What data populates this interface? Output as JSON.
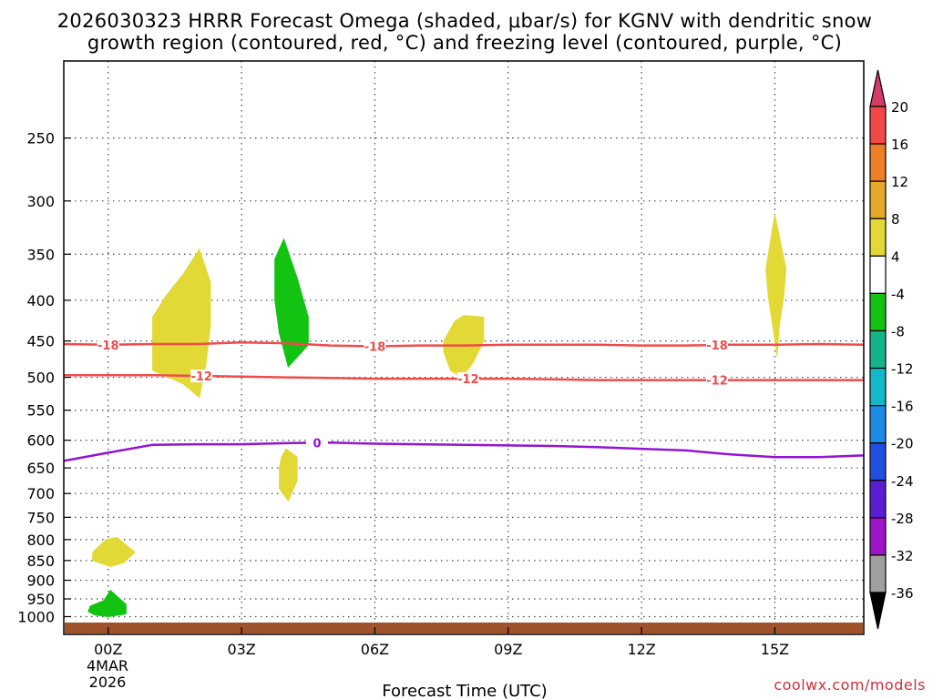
{
  "chart_data": {
    "type": "time-height cross section",
    "title_line1": "2026030323 HRRR Forecast Omega (shaded, μbar/s) for KGNV with dendritic snow",
    "title_line2": "growth region (contoured, red, °C) and freezing level (contoured, purple, °C)",
    "xlabel": "Forecast Time (UTC)",
    "x_ticks": [
      {
        "hour": 0,
        "label": "00Z"
      },
      {
        "hour": 3,
        "label": "03Z"
      },
      {
        "hour": 6,
        "label": "06Z"
      },
      {
        "hour": 9,
        "label": "09Z"
      },
      {
        "hour": 12,
        "label": "12Z"
      },
      {
        "hour": 15,
        "label": "15Z"
      }
    ],
    "x_date_label": [
      "4MAR",
      "2026"
    ],
    "xlim": [
      -1,
      17
    ],
    "y_scale": "pressure (log, inverted)",
    "ylim": [
      200,
      1020
    ],
    "y_ticks": [
      250,
      300,
      350,
      400,
      450,
      500,
      550,
      600,
      650,
      700,
      750,
      800,
      850,
      900,
      950,
      1000
    ],
    "grid": true,
    "colorbar": {
      "units": "μbar/s",
      "labels": [
        "20",
        "16",
        "12",
        "8",
        "4",
        "-4",
        "-8",
        "-12",
        "-16",
        "-20",
        "-24",
        "-28",
        "-32",
        "-36"
      ],
      "colors": [
        "#d43c68",
        "#f24848",
        "#ee7f26",
        "#e6a828",
        "#e3d936",
        "#ffffff",
        "#12c312",
        "#14b48a",
        "#14b9c8",
        "#1e8ce6",
        "#2050e0",
        "#5a1ed2",
        "#9e14c8",
        "#a0a0a0",
        "#000000"
      ]
    },
    "contours": [
      {
        "kind": "dendritic",
        "level": "-18",
        "color": "#f04b4b",
        "points": [
          [
            -1,
            454
          ],
          [
            0,
            455
          ],
          [
            1,
            454
          ],
          [
            2,
            454
          ],
          [
            3,
            452
          ],
          [
            4,
            453
          ],
          [
            5,
            456
          ],
          [
            6,
            457
          ],
          [
            7,
            456
          ],
          [
            8,
            456
          ],
          [
            9,
            455
          ],
          [
            10,
            455
          ],
          [
            11,
            455
          ],
          [
            12,
            456
          ],
          [
            13,
            456
          ],
          [
            14,
            455
          ],
          [
            15,
            455
          ],
          [
            16,
            454
          ],
          [
            17,
            455
          ]
        ],
        "label_hours": [
          0,
          6,
          13.7
        ]
      },
      {
        "kind": "dendritic",
        "level": "-12",
        "color": "#f04b4b",
        "points": [
          [
            -1,
            497
          ],
          [
            0,
            497
          ],
          [
            1,
            497
          ],
          [
            2,
            498
          ],
          [
            3,
            499
          ],
          [
            4,
            500
          ],
          [
            5,
            501
          ],
          [
            6,
            502
          ],
          [
            7,
            502
          ],
          [
            8,
            502
          ],
          [
            9,
            502
          ],
          [
            10,
            503
          ],
          [
            11,
            504
          ],
          [
            12,
            504
          ],
          [
            13,
            504
          ],
          [
            14,
            504
          ],
          [
            15,
            504
          ],
          [
            16,
            504
          ],
          [
            17,
            504
          ]
        ],
        "label_hours": [
          2.1,
          8.1,
          13.7
        ]
      },
      {
        "kind": "freezing level",
        "level": "0",
        "color": "#9314d2",
        "points": [
          [
            -1,
            637
          ],
          [
            0,
            622
          ],
          [
            1,
            608
          ],
          [
            2,
            607
          ],
          [
            3,
            607
          ],
          [
            4,
            605
          ],
          [
            5,
            604
          ],
          [
            6,
            606
          ],
          [
            7,
            607
          ],
          [
            8,
            608
          ],
          [
            9,
            609
          ],
          [
            10,
            610
          ],
          [
            11,
            612
          ],
          [
            12,
            615
          ],
          [
            13,
            618
          ],
          [
            14,
            625
          ],
          [
            15,
            630
          ],
          [
            16,
            630
          ],
          [
            17,
            627
          ]
        ],
        "label_hours": [
          4.7
        ]
      }
    ],
    "omega_regions": [
      {
        "category": "4 to 8",
        "color": "#e3d936",
        "outline": [
          [
            1.0,
            420
          ],
          [
            1.3,
            395
          ],
          [
            1.7,
            370
          ],
          [
            2.05,
            345
          ],
          [
            2.3,
            380
          ],
          [
            2.3,
            430
          ],
          [
            2.2,
            480
          ],
          [
            2.05,
            530
          ],
          [
            1.7,
            510
          ],
          [
            1.0,
            490
          ]
        ]
      },
      {
        "category": "-4 to -8",
        "color": "#12c312",
        "outline": [
          [
            3.75,
            355
          ],
          [
            3.95,
            335
          ],
          [
            4.25,
            375
          ],
          [
            4.5,
            420
          ],
          [
            4.5,
            455
          ],
          [
            4.35,
            465
          ],
          [
            4.05,
            485
          ],
          [
            3.85,
            440
          ],
          [
            3.75,
            400
          ]
        ]
      },
      {
        "category": "4 to 8",
        "color": "#e3d936",
        "outline": [
          [
            3.9,
            630
          ],
          [
            4.0,
            615
          ],
          [
            4.25,
            630
          ],
          [
            4.25,
            675
          ],
          [
            4.05,
            715
          ],
          [
            3.85,
            690
          ],
          [
            3.85,
            650
          ]
        ]
      },
      {
        "category": "4 to 8",
        "color": "#e3d936",
        "outline": [
          [
            7.55,
            450
          ],
          [
            7.8,
            425
          ],
          [
            8.0,
            418
          ],
          [
            8.45,
            420
          ],
          [
            8.45,
            450
          ],
          [
            8.2,
            480
          ],
          [
            7.95,
            500
          ],
          [
            7.7,
            490
          ],
          [
            7.55,
            465
          ]
        ]
      },
      {
        "category": "4 to 8",
        "color": "#e3d936",
        "outline": [
          [
            14.8,
            365
          ],
          [
            15.0,
            312
          ],
          [
            15.25,
            365
          ],
          [
            15.2,
            395
          ],
          [
            15.1,
            430
          ],
          [
            15.05,
            470
          ],
          [
            14.95,
            430
          ],
          [
            14.85,
            395
          ]
        ]
      },
      {
        "category": "4 to 8",
        "color": "#e3d936",
        "outline": [
          [
            -0.35,
            830
          ],
          [
            -0.05,
            800
          ],
          [
            0.2,
            795
          ],
          [
            0.6,
            830
          ],
          [
            0.35,
            855
          ],
          [
            0.05,
            865
          ],
          [
            -0.35,
            850
          ]
        ]
      },
      {
        "category": "-4 to -8",
        "color": "#12c312",
        "outline": [
          [
            -0.4,
            970
          ],
          [
            -0.1,
            955
          ],
          [
            0.05,
            927
          ],
          [
            0.4,
            965
          ],
          [
            0.4,
            992
          ],
          [
            0.0,
            1000
          ],
          [
            -0.3,
            995
          ],
          [
            -0.45,
            985
          ]
        ]
      }
    ],
    "surface_color": "#a0522d"
  },
  "credit": "coolwx.com/models"
}
